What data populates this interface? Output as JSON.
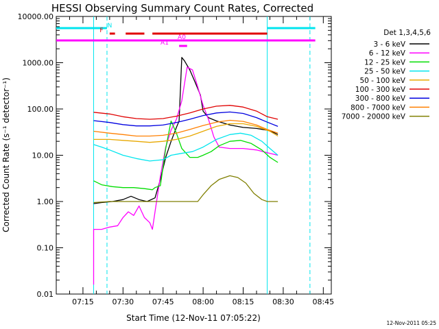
{
  "chart_data": {
    "type": "line",
    "title": "HESSI Observing Summary Count Rates, Corrected",
    "xlabel": "Start Time (12-Nov-11 07:05:22)",
    "ylabel": "Corrected Count Rate (s⁻¹ detector⁻¹)",
    "footer_stamp": "12-Nov-2011 05:25",
    "legend_title": "Det 1,3,4,5,6",
    "legend_position": "right",
    "y_scale": "log",
    "ylim": [
      0.01,
      10000
    ],
    "xlim_minutes": [
      "07:05",
      "08:48"
    ],
    "y_tick_labels": [
      "0.01",
      "0.10",
      "1.00",
      "10.00",
      "100.00",
      "1000.00",
      "10000.00"
    ],
    "x_tick_labels": [
      "07:15",
      "07:30",
      "07:45",
      "08:00",
      "08:15",
      "08:30",
      "08:45"
    ],
    "grid": false,
    "vertical_markers": {
      "solid": [
        "07:19",
        "08:24"
      ],
      "dashed": [
        "07:24",
        "08:40"
      ],
      "color": "#00e5ee"
    },
    "flag_bars": [
      {
        "label": "N",
        "color": "#00e5ee",
        "segments": [
          [
            "07:05",
            "07:24"
          ],
          [
            "08:24",
            "08:42"
          ]
        ]
      },
      {
        "label": "F",
        "color": "#e00000",
        "segments": [
          [
            "07:25",
            "07:27"
          ],
          [
            "07:31",
            "07:38"
          ],
          [
            "07:41",
            "08:24"
          ]
        ]
      },
      {
        "label": "",
        "color": "#ff00ff",
        "segments": [
          [
            "07:05",
            "08:42"
          ]
        ]
      },
      {
        "label": "A1",
        "color": "#ff00ff",
        "segments": [
          [
            "07:51",
            "07:54"
          ]
        ]
      },
      {
        "label": "A0",
        "color": "#ff00ff",
        "segments": []
      }
    ],
    "series": [
      {
        "name": "3 - 6 keV",
        "color": "#000000",
        "points": [
          [
            "07:19",
            0.9
          ],
          [
            "07:22",
            0.95
          ],
          [
            "07:26",
            1.0
          ],
          [
            "07:30",
            1.1
          ],
          [
            "07:33",
            1.3
          ],
          [
            "07:36",
            1.1
          ],
          [
            "07:39",
            1.0
          ],
          [
            "07:42",
            1.2
          ],
          [
            "07:44",
            3.0
          ],
          [
            "07:46",
            9.0
          ],
          [
            "07:48",
            20
          ],
          [
            "07:50",
            40
          ],
          [
            "07:51",
            55
          ],
          [
            "07:52",
            1300
          ],
          [
            "07:53",
            1100
          ],
          [
            "07:55",
            700
          ],
          [
            "07:57",
            380
          ],
          [
            "07:59",
            200
          ],
          [
            "08:00",
            90
          ],
          [
            "08:02",
            65
          ],
          [
            "08:05",
            55
          ],
          [
            "08:10",
            45
          ],
          [
            "08:15",
            40
          ],
          [
            "08:20",
            38
          ],
          [
            "08:25",
            34
          ],
          [
            "08:28",
            28
          ]
        ]
      },
      {
        "name": "6 - 12 keV",
        "color": "#ff00ff",
        "points": [
          [
            "07:19",
            0.016
          ],
          [
            "07:19",
            0.25
          ],
          [
            "07:22",
            0.25
          ],
          [
            "07:25",
            0.28
          ],
          [
            "07:28",
            0.3
          ],
          [
            "07:30",
            0.45
          ],
          [
            "07:32",
            0.6
          ],
          [
            "07:34",
            0.5
          ],
          [
            "07:36",
            0.8
          ],
          [
            "07:38",
            0.45
          ],
          [
            "07:40",
            0.35
          ],
          [
            "07:41",
            0.25
          ],
          [
            "07:42",
            0.6
          ],
          [
            "07:44",
            3.5
          ],
          [
            "07:46",
            15
          ],
          [
            "07:48",
            35
          ],
          [
            "07:50",
            60
          ],
          [
            "07:52",
            150
          ],
          [
            "07:54",
            800
          ],
          [
            "07:56",
            700
          ],
          [
            "07:58",
            300
          ],
          [
            "08:00",
            120
          ],
          [
            "08:02",
            60
          ],
          [
            "08:04",
            25
          ],
          [
            "08:06",
            15
          ],
          [
            "08:10",
            14
          ],
          [
            "08:15",
            14
          ],
          [
            "08:20",
            13
          ],
          [
            "08:25",
            11
          ],
          [
            "08:28",
            10
          ]
        ]
      },
      {
        "name": "12 - 25 keV",
        "color": "#00dd00",
        "points": [
          [
            "07:19",
            2.8
          ],
          [
            "07:22",
            2.3
          ],
          [
            "07:26",
            2.1
          ],
          [
            "07:30",
            2.0
          ],
          [
            "07:34",
            2.0
          ],
          [
            "07:38",
            1.9
          ],
          [
            "07:41",
            1.8
          ],
          [
            "07:42",
            2.0
          ],
          [
            "07:44",
            2.2
          ],
          [
            "07:46",
            14
          ],
          [
            "07:48",
            55
          ],
          [
            "07:50",
            30
          ],
          [
            "07:52",
            14
          ],
          [
            "07:55",
            9
          ],
          [
            "07:58",
            9
          ],
          [
            "08:00",
            10
          ],
          [
            "08:03",
            12
          ],
          [
            "08:06",
            16
          ],
          [
            "08:10",
            20
          ],
          [
            "08:14",
            21
          ],
          [
            "08:18",
            18
          ],
          [
            "08:22",
            13
          ],
          [
            "08:25",
            9
          ],
          [
            "08:28",
            7
          ]
        ]
      },
      {
        "name": "25 - 50 keV",
        "color": "#00e5ee",
        "points": [
          [
            "07:19",
            17
          ],
          [
            "07:22",
            15
          ],
          [
            "07:25",
            13
          ],
          [
            "07:30",
            10
          ],
          [
            "07:35",
            8.5
          ],
          [
            "07:40",
            7.5
          ],
          [
            "07:45",
            8.0
          ],
          [
            "07:48",
            10
          ],
          [
            "07:52",
            11
          ],
          [
            "07:56",
            12
          ],
          [
            "08:00",
            15
          ],
          [
            "08:05",
            22
          ],
          [
            "08:10",
            28
          ],
          [
            "08:14",
            30
          ],
          [
            "08:18",
            27
          ],
          [
            "08:22",
            20
          ],
          [
            "08:25",
            14
          ],
          [
            "08:28",
            10
          ]
        ]
      },
      {
        "name": "50 - 100 keV",
        "color": "#e8a800",
        "points": [
          [
            "07:19",
            22
          ],
          [
            "07:25",
            22
          ],
          [
            "07:30",
            21
          ],
          [
            "07:35",
            20
          ],
          [
            "07:40",
            19
          ],
          [
            "07:45",
            20
          ],
          [
            "07:50",
            22
          ],
          [
            "07:55",
            26
          ],
          [
            "08:00",
            33
          ],
          [
            "08:05",
            42
          ],
          [
            "08:10",
            48
          ],
          [
            "08:15",
            48
          ],
          [
            "08:20",
            42
          ],
          [
            "08:25",
            33
          ],
          [
            "08:28",
            26
          ]
        ]
      },
      {
        "name": "100 - 300 keV",
        "color": "#e00000",
        "points": [
          [
            "07:19",
            85
          ],
          [
            "07:25",
            78
          ],
          [
            "07:30",
            68
          ],
          [
            "07:35",
            62
          ],
          [
            "07:40",
            60
          ],
          [
            "07:45",
            62
          ],
          [
            "07:50",
            70
          ],
          [
            "07:55",
            82
          ],
          [
            "08:00",
            100
          ],
          [
            "08:05",
            115
          ],
          [
            "08:10",
            120
          ],
          [
            "08:15",
            110
          ],
          [
            "08:20",
            90
          ],
          [
            "08:24",
            68
          ],
          [
            "08:28",
            60
          ]
        ]
      },
      {
        "name": "300 - 800 keV",
        "color": "#0000e0",
        "points": [
          [
            "07:19",
            56
          ],
          [
            "07:25",
            51
          ],
          [
            "07:30",
            46
          ],
          [
            "07:35",
            43
          ],
          [
            "07:40",
            43
          ],
          [
            "07:45",
            45
          ],
          [
            "07:50",
            51
          ],
          [
            "07:55",
            60
          ],
          [
            "08:00",
            72
          ],
          [
            "08:05",
            82
          ],
          [
            "08:10",
            86
          ],
          [
            "08:15",
            80
          ],
          [
            "08:20",
            65
          ],
          [
            "08:24",
            52
          ],
          [
            "08:28",
            42
          ]
        ]
      },
      {
        "name": "800 - 7000 keV",
        "color": "#ff7f00",
        "points": [
          [
            "07:19",
            33
          ],
          [
            "07:25",
            30
          ],
          [
            "07:30",
            28
          ],
          [
            "07:35",
            26
          ],
          [
            "07:40",
            26
          ],
          [
            "07:45",
            27
          ],
          [
            "07:50",
            30
          ],
          [
            "07:55",
            36
          ],
          [
            "08:00",
            44
          ],
          [
            "08:05",
            52
          ],
          [
            "08:10",
            57
          ],
          [
            "08:15",
            54
          ],
          [
            "08:20",
            45
          ],
          [
            "08:24",
            36
          ],
          [
            "08:28",
            30
          ]
        ]
      },
      {
        "name": "7000 - 20000 keV",
        "color": "#7f7f00",
        "points": [
          [
            "07:19",
            0.95
          ],
          [
            "07:25",
            1.0
          ],
          [
            "07:30",
            1.0
          ],
          [
            "07:35",
            1.0
          ],
          [
            "07:40",
            1.0
          ],
          [
            "07:45",
            1.0
          ],
          [
            "07:50",
            1.0
          ],
          [
            "07:55",
            1.0
          ],
          [
            "07:58",
            1.0
          ],
          [
            "08:00",
            1.4
          ],
          [
            "08:03",
            2.2
          ],
          [
            "08:06",
            3.0
          ],
          [
            "08:10",
            3.6
          ],
          [
            "08:13",
            3.3
          ],
          [
            "08:16",
            2.5
          ],
          [
            "08:19",
            1.5
          ],
          [
            "08:22",
            1.1
          ],
          [
            "08:24",
            1.0
          ],
          [
            "08:28",
            1.0
          ]
        ]
      }
    ]
  }
}
